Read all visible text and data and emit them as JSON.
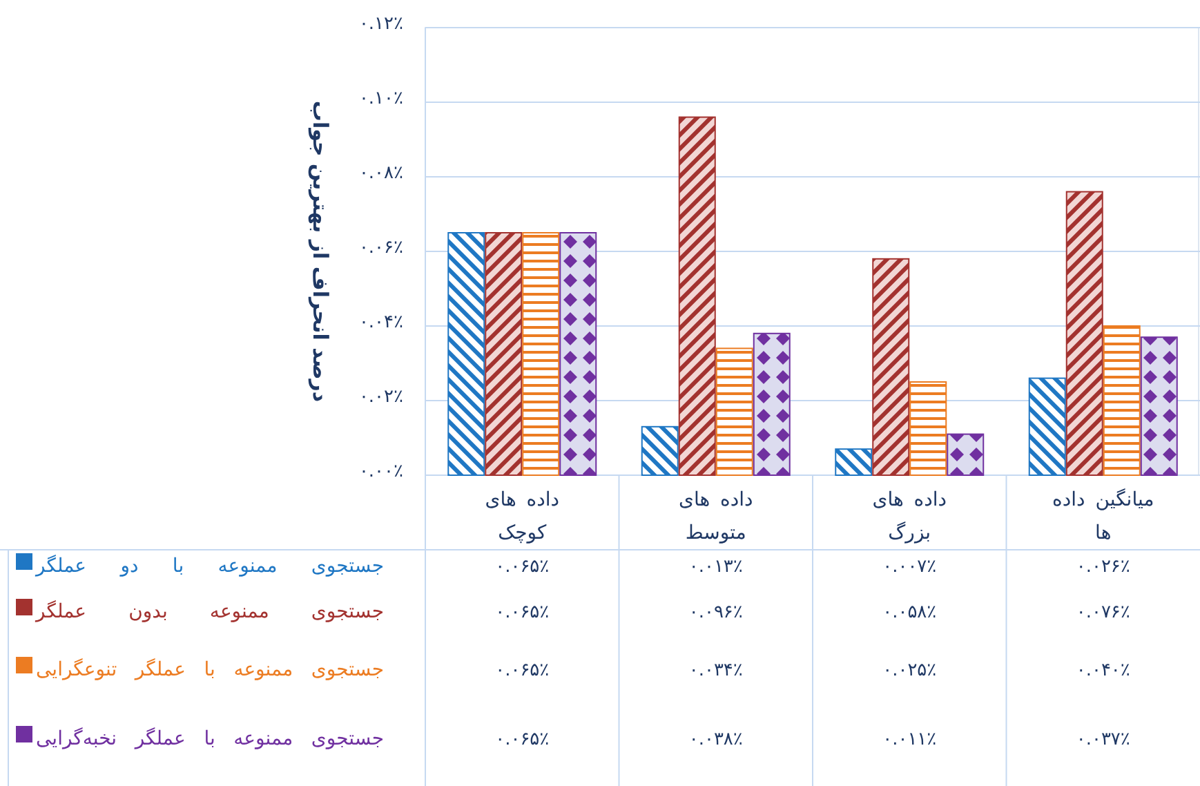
{
  "chart_data": {
    "type": "bar",
    "ylabel": "درصد انحراف از بهترین جواب",
    "categories": [
      "داده های کوچک",
      "داده های متوسط",
      "داده های بزرگ",
      "میانگین داده ها"
    ],
    "ylim": [
      0,
      0.12
    ],
    "yticks": [
      {
        "value": 0,
        "label": "۰.۰۰٪"
      },
      {
        "value": 0.02,
        "label": "۰.۰۲٪"
      },
      {
        "value": 0.04,
        "label": "۰.۰۴٪"
      },
      {
        "value": 0.06,
        "label": "۰.۰۶٪"
      },
      {
        "value": 0.08,
        "label": "۰.۰۸٪"
      },
      {
        "value": 0.1,
        "label": "۰.۱۰٪"
      },
      {
        "value": 0.12,
        "label": "۰.۱۲٪"
      }
    ],
    "grid": "y",
    "legend": "bottom left",
    "series": [
      {
        "name": "جستجوی ممنوعه با دو عملگر",
        "color": "#1f77c4",
        "values": [
          0.065,
          0.013,
          0.007,
          0.026
        ],
        "value_labels": [
          "۰.۰۶۵٪",
          "۰.۰۱۳٪",
          "۰.۰۰۷٪",
          "۰.۰۲۶٪"
        ]
      },
      {
        "name": "جستجوی ممنوعه بدون عملگر",
        "color": "#a3322f",
        "values": [
          0.065,
          0.096,
          0.058,
          0.076
        ],
        "value_labels": [
          "۰.۰۶۵٪",
          "۰.۰۹۶٪",
          "۰.۰۵۸٪",
          "۰.۰۷۶٪"
        ]
      },
      {
        "name": "جستجوی ممنوعه با عملگر تنوعگرایی",
        "color": "#ec7c22",
        "values": [
          0.065,
          0.034,
          0.025,
          0.04
        ],
        "value_labels": [
          "۰.۰۶۵٪",
          "۰.۰۳۴٪",
          "۰.۰۲۵٪",
          "۰.۰۴۰٪"
        ]
      },
      {
        "name": "جستجوی ممنوعه با عملگر نخبه‌گرایی",
        "color": "#7030a0",
        "values": [
          0.065,
          0.038,
          0.011,
          0.037
        ],
        "value_labels": [
          "۰.۰۶۵٪",
          "۰.۰۳۸٪",
          "۰.۰۱۱٪",
          "۰.۰۳۷٪"
        ]
      }
    ]
  }
}
